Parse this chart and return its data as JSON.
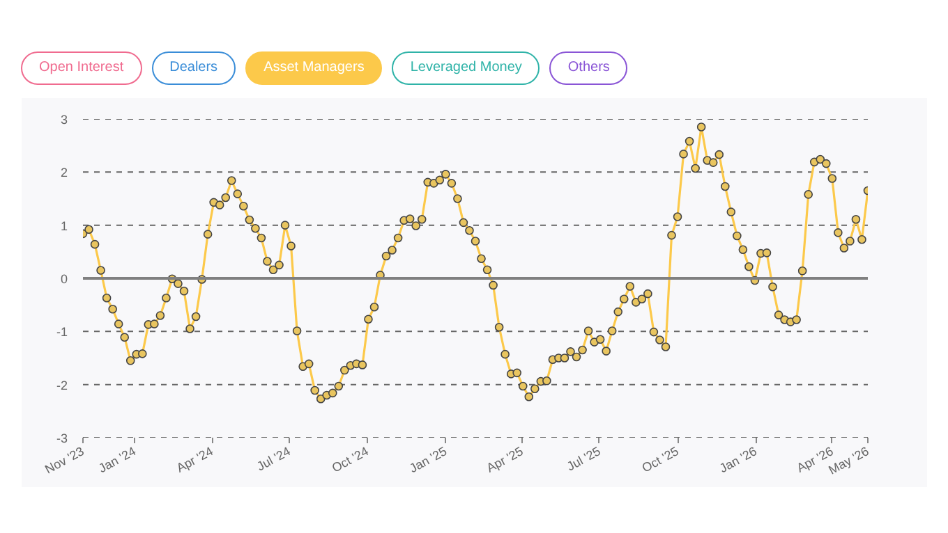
{
  "chart_data": {
    "type": "line",
    "legend": "top left",
    "annotations": [
      "Open Interest",
      "Dealers",
      "Leveraged Money",
      "Others"
    ],
    "grid": "y",
    "marker": "circle",
    "line_style": "solid",
    "ylim": [
      -3,
      3
    ],
    "yticks": [
      -3,
      -2,
      -1,
      0,
      1,
      2,
      3
    ],
    "xlim": [
      "2023-11-01",
      "2026-05-13"
    ],
    "xticks": [
      {
        "value": "2023-11-01",
        "label": "Nov '23"
      },
      {
        "value": "2024-01-01",
        "label": "Jan '24"
      },
      {
        "value": "2024-04-01",
        "label": "Apr '24"
      },
      {
        "value": "2024-07-01",
        "label": "Jul '24"
      },
      {
        "value": "2024-10-01",
        "label": "Oct '24"
      },
      {
        "value": "2025-01-01",
        "label": "Jan '25"
      },
      {
        "value": "2025-04-01",
        "label": "Apr '25"
      },
      {
        "value": "2025-07-01",
        "label": "Jul '25"
      },
      {
        "value": "2025-10-01",
        "label": "Oct '25"
      },
      {
        "value": "2026-01-01",
        "label": "Jan '26"
      },
      {
        "value": "2026-04-01",
        "label": "Apr '26"
      },
      {
        "value": "2026-05-13",
        "label": "May '26"
      }
    ],
    "ref_lines": [
      {
        "axis": "y",
        "value": 0,
        "color": "#808080",
        "line_style": "solid"
      }
    ],
    "x": [
      "2023-11-01",
      "2023-11-08",
      "2023-11-15",
      "2023-11-22",
      "2023-11-29",
      "2023-12-06",
      "2023-12-13",
      "2023-12-20",
      "2023-12-27",
      "2024-01-03",
      "2024-01-10",
      "2024-01-17",
      "2024-01-24",
      "2024-01-31",
      "2024-02-07",
      "2024-02-14",
      "2024-02-21",
      "2024-02-28",
      "2024-03-06",
      "2024-03-13",
      "2024-03-20",
      "2024-03-27",
      "2024-04-03",
      "2024-04-10",
      "2024-04-17",
      "2024-04-24",
      "2024-05-01",
      "2024-05-08",
      "2024-05-15",
      "2024-05-22",
      "2024-05-29",
      "2024-06-05",
      "2024-06-12",
      "2024-06-19",
      "2024-06-26",
      "2024-07-03",
      "2024-07-10",
      "2024-07-17",
      "2024-07-24",
      "2024-07-31",
      "2024-08-07",
      "2024-08-14",
      "2024-08-21",
      "2024-08-28",
      "2024-09-04",
      "2024-09-11",
      "2024-09-18",
      "2024-09-25",
      "2024-10-02",
      "2024-10-09",
      "2024-10-16",
      "2024-10-23",
      "2024-10-30",
      "2024-11-06",
      "2024-11-13",
      "2024-11-20",
      "2024-11-27",
      "2024-12-04",
      "2024-12-11",
      "2024-12-18",
      "2024-12-25",
      "2025-01-01",
      "2025-01-08",
      "2025-01-15",
      "2025-01-22",
      "2025-01-29",
      "2025-02-05",
      "2025-02-12",
      "2025-02-19",
      "2025-02-26",
      "2025-03-05",
      "2025-03-12",
      "2025-03-19",
      "2025-03-26",
      "2025-04-02",
      "2025-04-09",
      "2025-04-16",
      "2025-04-23",
      "2025-04-30",
      "2025-05-07",
      "2025-05-14",
      "2025-05-21",
      "2025-05-28",
      "2025-06-04",
      "2025-06-11",
      "2025-06-18",
      "2025-06-25",
      "2025-07-02",
      "2025-07-09",
      "2025-07-16",
      "2025-07-23",
      "2025-07-30",
      "2025-08-06",
      "2025-08-13",
      "2025-08-20",
      "2025-08-27",
      "2025-09-03",
      "2025-09-10",
      "2025-09-17",
      "2025-09-24",
      "2025-10-01",
      "2025-10-08",
      "2025-10-15",
      "2025-10-22",
      "2025-10-29",
      "2025-11-05",
      "2025-11-12",
      "2025-11-19",
      "2025-11-26",
      "2025-12-03",
      "2025-12-10",
      "2025-12-17",
      "2025-12-24",
      "2025-12-31",
      "2026-01-07",
      "2026-01-14",
      "2026-01-21",
      "2026-01-28",
      "2026-02-04",
      "2026-02-11",
      "2026-02-18",
      "2026-02-25",
      "2026-03-04",
      "2026-03-11",
      "2026-03-18",
      "2026-03-25",
      "2026-04-01",
      "2026-04-08",
      "2026-04-15",
      "2026-04-22",
      "2026-04-29",
      "2026-05-06",
      "2026-05-13"
    ],
    "series": [
      {
        "name": "Asset Managers",
        "color": "#fcc94a",
        "values": [
          0.84,
          0.92,
          0.64,
          0.15,
          -0.37,
          -0.58,
          -0.86,
          -1.11,
          -1.55,
          -1.43,
          -1.42,
          -0.87,
          -0.86,
          -0.7,
          -0.37,
          -0.01,
          -0.1,
          -0.24,
          -0.95,
          -0.72,
          -0.02,
          0.83,
          1.43,
          1.38,
          1.52,
          1.84,
          1.59,
          1.36,
          1.1,
          0.94,
          0.76,
          0.32,
          0.16,
          0.25,
          1.0,
          0.61,
          -0.99,
          -1.66,
          -1.61,
          -2.11,
          -2.27,
          -2.2,
          -2.16,
          -2.03,
          -1.73,
          -1.64,
          -1.61,
          -1.63,
          -0.77,
          -0.54,
          0.06,
          0.42,
          0.53,
          0.76,
          1.09,
          1.12,
          0.99,
          1.11,
          1.81,
          1.79,
          1.85,
          1.96,
          1.79,
          1.5,
          1.05,
          0.9,
          0.7,
          0.37,
          0.16,
          -0.13,
          -0.92,
          -1.43,
          -1.8,
          -1.78,
          -2.03,
          -2.23,
          -2.08,
          -1.94,
          -1.93,
          -1.53,
          -1.5,
          -1.5,
          -1.38,
          -1.48,
          -1.35,
          -0.99,
          -1.2,
          -1.15,
          -1.37,
          -0.99,
          -0.63,
          -0.39,
          -0.15,
          -0.45,
          -0.39,
          -0.29,
          -1.01,
          -1.16,
          -1.29,
          0.81,
          1.16,
          2.34,
          2.58,
          2.07,
          2.85,
          2.22,
          2.18,
          2.33,
          1.73,
          1.25,
          0.8,
          0.54,
          0.22,
          -0.04,
          0.47,
          0.48,
          -0.16,
          -0.69,
          -0.78,
          -0.82,
          -0.78,
          0.14,
          1.58,
          2.19,
          2.24,
          2.16,
          1.88,
          0.86,
          0.57,
          0.7,
          1.11,
          0.73,
          1.65
        ]
      }
    ]
  }
}
